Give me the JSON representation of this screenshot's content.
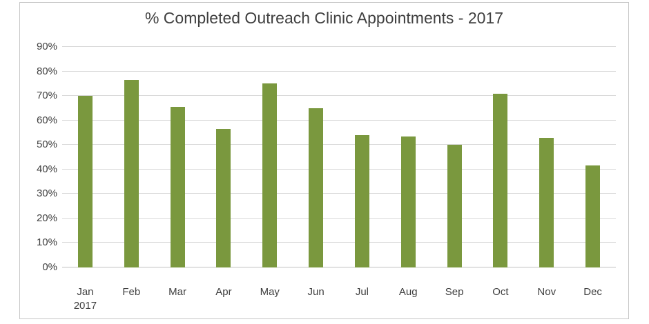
{
  "chart_data": {
    "type": "bar",
    "title": "% Completed Outreach Clinic Appointments - 2017",
    "categories": [
      "Jan",
      "Feb",
      "Mar",
      "Apr",
      "May",
      "Jun",
      "Jul",
      "Aug",
      "Sep",
      "Oct",
      "Nov",
      "Dec"
    ],
    "values": [
      70,
      76.5,
      65.5,
      56.5,
      75,
      65,
      54,
      53.5,
      50,
      71,
      53,
      41.5
    ],
    "x_secondary_label": {
      "text": "2017",
      "under_index": 0
    },
    "y_ticks": [
      {
        "label": "90%",
        "value": 90
      },
      {
        "label": "80%",
        "value": 80
      },
      {
        "label": "70%",
        "value": 70
      },
      {
        "label": "60%",
        "value": 60
      },
      {
        "label": "50%",
        "value": 50
      },
      {
        "label": "40%",
        "value": 40
      },
      {
        "label": "30%",
        "value": 30
      },
      {
        "label": "20%",
        "value": 20
      },
      {
        "label": "10%",
        "value": 10
      },
      {
        "label": "0%",
        "value": 0
      }
    ],
    "ylim": [
      0,
      90
    ],
    "grid": true,
    "legend": "none",
    "colors": {
      "bar": "#7A983E",
      "gridline": "#D9D9D9",
      "axis_line": "#BFBFBF",
      "text": "#404040",
      "chart_border": "#C6C6C6",
      "background": "#FFFFFF"
    }
  }
}
